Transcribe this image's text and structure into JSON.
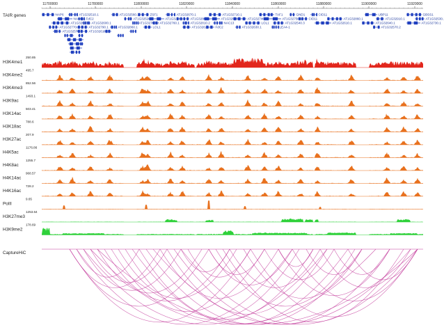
{
  "ruler": {
    "ticks": [
      "11700000",
      "11780000",
      "11800000",
      "11820000",
      "11840000",
      "11860000",
      "11880000",
      "11900000",
      "11920000"
    ]
  },
  "genes": {
    "label": "TAIR genes",
    "labels": [
      "NAP6",
      "AT1G32510.1",
      "AT1G32560.1",
      "ZSF1",
      "AT1G32670.1",
      "AT1G32710.1",
      "TAF1",
      "GND1",
      "CID11",
      "UBP11",
      "GBSS1",
      "NAC011",
      "FdC2",
      "AT1G32520.1",
      "AT1G32580.1",
      "AT1G32690.1",
      "AT1G32720.1",
      "AT1G32740.1",
      "AT1G32750.1",
      "CID11",
      "AT1G32860.1",
      "AT1G32910.1",
      "AT1G32530.1",
      "AT1G32590.1",
      "AT1G32600.1",
      "AT1G32700.2",
      "AT1G32760.1",
      "AT1G32810.2",
      "NAC13",
      "LOL1",
      "AT1G32540.3",
      "AT1G32610.1",
      "AT1G32640.1",
      "AT1G32730.1",
      "AT1G32770.1",
      "AT1G32790.1",
      "AT1G32860.1",
      "LOL1",
      "AT1G32620.1",
      "FdC2",
      "AT1G32630.1",
      "LEA4-1",
      "AT1G32570.2",
      "AT1G32575.1",
      "AT1G32610.2"
    ],
    "color": "#1f3fbf"
  },
  "tracks": [
    {
      "name": "H3K4me1",
      "scale": "250.85",
      "color": "#e2261c",
      "type": "dense"
    },
    {
      "name": "H3K4me2",
      "scale": "495.7",
      "color": "#e8711e",
      "type": "peak"
    },
    {
      "name": "H3K4me3",
      "scale": "852.56",
      "color": "#e8711e",
      "type": "peak"
    },
    {
      "name": "H3K9ac",
      "scale": "1493.1",
      "color": "#e8711e",
      "type": "peak"
    },
    {
      "name": "H3K14ac",
      "scale": "503.41",
      "color": "#e8711e",
      "type": "peak"
    },
    {
      "name": "H3K18ac",
      "scale": "788.6",
      "color": "#e8711e",
      "type": "peak"
    },
    {
      "name": "H3K27ac",
      "scale": "207.9",
      "color": "#e8711e",
      "type": "peak"
    },
    {
      "name": "H4K5ac",
      "scale": "1176.86",
      "color": "#e8711e",
      "type": "peak"
    },
    {
      "name": "H4K8ac",
      "scale": "1255.7",
      "color": "#e8711e",
      "type": "peak"
    },
    {
      "name": "H4K14ac",
      "scale": "968.57",
      "color": "#e8711e",
      "type": "peak"
    },
    {
      "name": "H4K16ac",
      "scale": "728.2",
      "color": "#e8711e",
      "type": "peak"
    },
    {
      "name": "PolII",
      "scale": "9.65",
      "color": "#e8711e",
      "type": "sparse"
    },
    {
      "name": "H3K27me3",
      "scale": "1253.64",
      "color": "#2fd13a",
      "type": "broad"
    },
    {
      "name": "H3K9me2",
      "scale": "178.69",
      "color": "#2fd13a",
      "type": "broad2"
    }
  ],
  "interaction": {
    "name": "CaptureHiC",
    "color": "#c2379a"
  }
}
